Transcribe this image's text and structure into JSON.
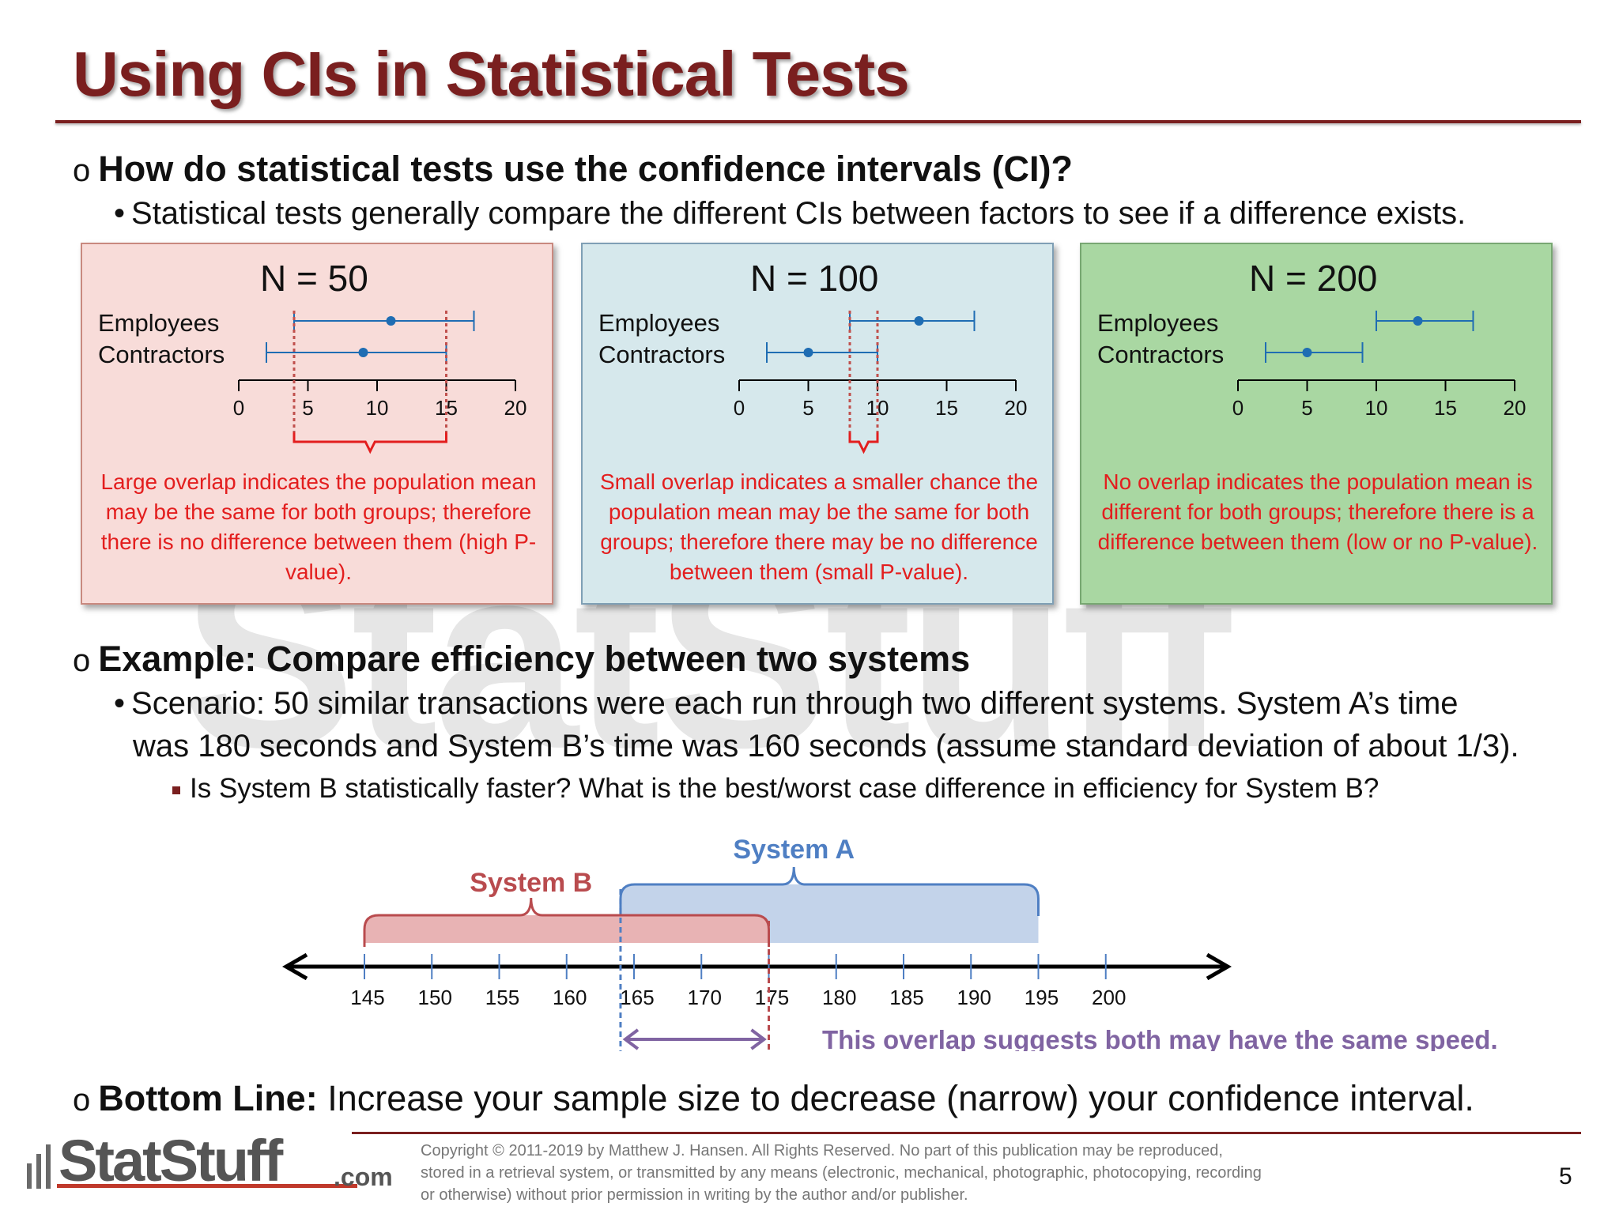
{
  "title": "Using CIs in Statistical Tests",
  "question": "How do statistical tests use the confidence intervals (CI)?",
  "question_sub": "Statistical tests generally compare the different CIs between factors to see if a difference exists.",
  "panels": [
    {
      "title": "N = 50",
      "row1": "Employees",
      "row2": "Contractors",
      "ticks": [
        "0",
        "5",
        "10",
        "15",
        "20"
      ],
      "note": "Large overlap indicates the population mean may be the same for both groups; therefore there is no difference between them (high P-value).",
      "employees_ci": [
        4,
        17
      ],
      "employees_mean": 11,
      "contractors_ci": [
        2,
        15
      ],
      "contractors_mean": 9
    },
    {
      "title": "N = 100",
      "row1": "Employees",
      "row2": "Contractors",
      "ticks": [
        "0",
        "5",
        "10",
        "15",
        "20"
      ],
      "note": "Small overlap indicates a smaller chance the population mean may be the same for both groups; therefore there may be no difference between them (small P-value).",
      "employees_ci": [
        8,
        17
      ],
      "employees_mean": 13,
      "contractors_ci": [
        2,
        10
      ],
      "contractors_mean": 5
    },
    {
      "title": "N = 200",
      "row1": "Employees",
      "row2": "Contractors",
      "ticks": [
        "0",
        "5",
        "10",
        "15",
        "20"
      ],
      "note": "No overlap indicates the population mean is different for both groups; therefore there is a difference between them (low or no P-value).",
      "employees_ci": [
        10,
        17
      ],
      "employees_mean": 13,
      "contractors_ci": [
        2,
        9
      ],
      "contractors_mean": 5
    }
  ],
  "example_heading": "Example: Compare efficiency between two systems",
  "scenario_line1": "Scenario: 50 similar transactions were each run through two different systems.  System A’s time",
  "scenario_line2": "was 180 seconds and System B’s time was 160 seconds (assume standard deviation of about 1/3).",
  "question2": "Is System B statistically faster?  What is the best/worst case difference in efficiency for System B?",
  "numberline": {
    "ticks": [
      "145",
      "150",
      "155",
      "160",
      "165",
      "170",
      "175",
      "180",
      "185",
      "190",
      "195",
      "200"
    ],
    "system_a_label": "System A",
    "system_a_range": [
      164,
      195
    ],
    "system_b_label": "System B",
    "system_b_range": [
      145,
      175
    ],
    "overlap_text": "This overlap suggests both may have the same speed."
  },
  "bottom_line_label": "Bottom Line:",
  "bottom_line_text": " Increase your sample size to decrease (narrow) your confidence interval.",
  "logo": "StatStuff.com",
  "copyright": "Copyright © 2011-2019 by Matthew  J. Hansen.  All Rights Reserved.  No part of this publication may be reproduced, stored in a retrieval system, or transmitted by any means  (electronic, mechanical, photographic, photocopying, recording or otherwise) without prior permission in writing by the author and/or publisher.",
  "page_number": "5",
  "colors": {
    "title": "#7a1f1f",
    "ci_line": "#1f6db3",
    "overlap_red": "#e31e1e",
    "system_a": "#4f7fc3",
    "system_b": "#b94b4e",
    "overlap_purple": "#8064a2"
  }
}
